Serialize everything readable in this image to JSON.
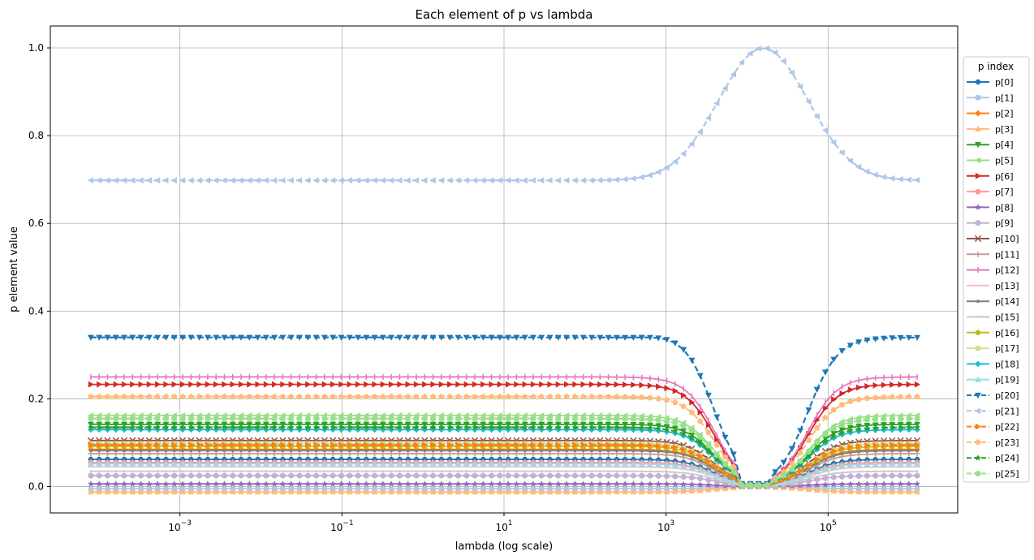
{
  "chart_data": {
    "type": "line",
    "title": "Each element of p vs lambda",
    "xlabel": "lambda (log scale)",
    "ylabel": "p element value",
    "x_scale": "log",
    "xlim_log10": [
      -4.6,
      6.6
    ],
    "ylim": [
      -0.06,
      1.05
    ],
    "x_ticks": [
      {
        "value": -3,
        "label": "10^{-3}"
      },
      {
        "value": -1,
        "label": "10^{-1}"
      },
      {
        "value": 1,
        "label": "10^{1}"
      },
      {
        "value": 3,
        "label": "10^{3}"
      },
      {
        "value": 5,
        "label": "10^{5}"
      }
    ],
    "y_ticks": [
      {
        "value": 0.0,
        "label": "0.0"
      },
      {
        "value": 0.2,
        "label": "0.2"
      },
      {
        "value": 0.4,
        "label": "0.4"
      },
      {
        "value": 0.6,
        "label": "0.6"
      },
      {
        "value": 0.8,
        "label": "0.8"
      },
      {
        "value": 1.0,
        "label": "1.0"
      }
    ],
    "grid": true,
    "legend": {
      "title": "p index",
      "placement": "right, outside"
    },
    "x_log10_range": [
      -4.1,
      6.1
    ],
    "collapse_to_zero_lambda": [
      8000,
      20000
    ],
    "series": [
      {
        "name": "p[0]",
        "color": "#1f77b4",
        "marker": "o",
        "linestyle": "solid",
        "base": 0.062,
        "mid": "collapse"
      },
      {
        "name": "p[1]",
        "color": "#aec7e8",
        "marker": "s",
        "linestyle": "solid",
        "base": -0.005,
        "mid": "collapse"
      },
      {
        "name": "p[2]",
        "color": "#ff7f0e",
        "marker": "D",
        "linestyle": "solid",
        "base": 0.085,
        "mid": "collapse"
      },
      {
        "name": "p[3]",
        "color": "#ffbb78",
        "marker": "^",
        "linestyle": "solid",
        "base": -0.012,
        "mid": "collapse"
      },
      {
        "name": "p[4]",
        "color": "#2ca02c",
        "marker": "v",
        "linestyle": "solid",
        "base": 0.142,
        "mid": "collapse"
      },
      {
        "name": "p[5]",
        "color": "#98df8a",
        "marker": "<",
        "linestyle": "solid",
        "base": 0.162,
        "mid": "collapse"
      },
      {
        "name": "p[6]",
        "color": "#d62728",
        "marker": ">",
        "linestyle": "solid",
        "base": 0.233,
        "mid": "collapse"
      },
      {
        "name": "p[7]",
        "color": "#ff9896",
        "marker": "p",
        "linestyle": "solid",
        "base": 0.055,
        "mid": "collapse"
      },
      {
        "name": "p[8]",
        "color": "#9467bd",
        "marker": "*",
        "linestyle": "solid",
        "base": 0.006,
        "mid": "collapse"
      },
      {
        "name": "p[9]",
        "color": "#c5b0d5",
        "marker": "h",
        "linestyle": "solid",
        "base": 0.025,
        "mid": "collapse"
      },
      {
        "name": "p[10]",
        "color": "#8c564b",
        "marker": "x",
        "linestyle": "solid",
        "base": 0.105,
        "mid": "collapse"
      },
      {
        "name": "p[11]",
        "color": "#c49c94",
        "marker": "+",
        "linestyle": "solid",
        "base": 0.075,
        "mid": "collapse"
      },
      {
        "name": "p[12]",
        "color": "#e377c2",
        "marker": "|",
        "linestyle": "solid",
        "base": 0.25,
        "mid": "collapse"
      },
      {
        "name": "p[13]",
        "color": "#f7b6d2",
        "marker": "_",
        "linestyle": "solid",
        "base": 0.045,
        "mid": "collapse"
      },
      {
        "name": "p[14]",
        "color": "#7f7f7f",
        "marker": ".",
        "linestyle": "solid",
        "base": 0.082,
        "mid": "collapse"
      },
      {
        "name": "p[15]",
        "color": "#c7c7c7",
        "marker": ",",
        "linestyle": "solid",
        "base": 0.035,
        "mid": "collapse"
      },
      {
        "name": "p[16]",
        "color": "#bcbd22",
        "marker": "o",
        "linestyle": "solid",
        "base": 0.092,
        "mid": "collapse"
      },
      {
        "name": "p[17]",
        "color": "#dbdb8d",
        "marker": "s",
        "linestyle": "solid",
        "base": 0.098,
        "mid": "collapse"
      },
      {
        "name": "p[18]",
        "color": "#17becf",
        "marker": "D",
        "linestyle": "solid",
        "base": 0.13,
        "mid": "collapse"
      },
      {
        "name": "p[19]",
        "color": "#9edae5",
        "marker": "^",
        "linestyle": "solid",
        "base": 0.052,
        "mid": "collapse"
      },
      {
        "name": "p[20]",
        "color": "#1f77b4",
        "marker": "v",
        "linestyle": "dashed",
        "base": 0.34,
        "mid": "bump_then_collapse"
      },
      {
        "name": "p[21]",
        "color": "#aec7e8",
        "marker": "<",
        "linestyle": "dashed",
        "base": 0.698,
        "mid": "peak_to_one"
      },
      {
        "name": "p[22]",
        "color": "#ff7f0e",
        "marker": ">",
        "linestyle": "dashed",
        "base": 0.095,
        "mid": "collapse"
      },
      {
        "name": "p[23]",
        "color": "#ffbb78",
        "marker": "p",
        "linestyle": "dashed",
        "base": 0.205,
        "mid": "collapse"
      },
      {
        "name": "p[24]",
        "color": "#2ca02c",
        "marker": "*",
        "linestyle": "dashed",
        "base": 0.135,
        "mid": "collapse"
      },
      {
        "name": "p[25]",
        "color": "#98df8a",
        "marker": "h",
        "linestyle": "dashed",
        "base": 0.155,
        "mid": "collapse"
      }
    ]
  }
}
